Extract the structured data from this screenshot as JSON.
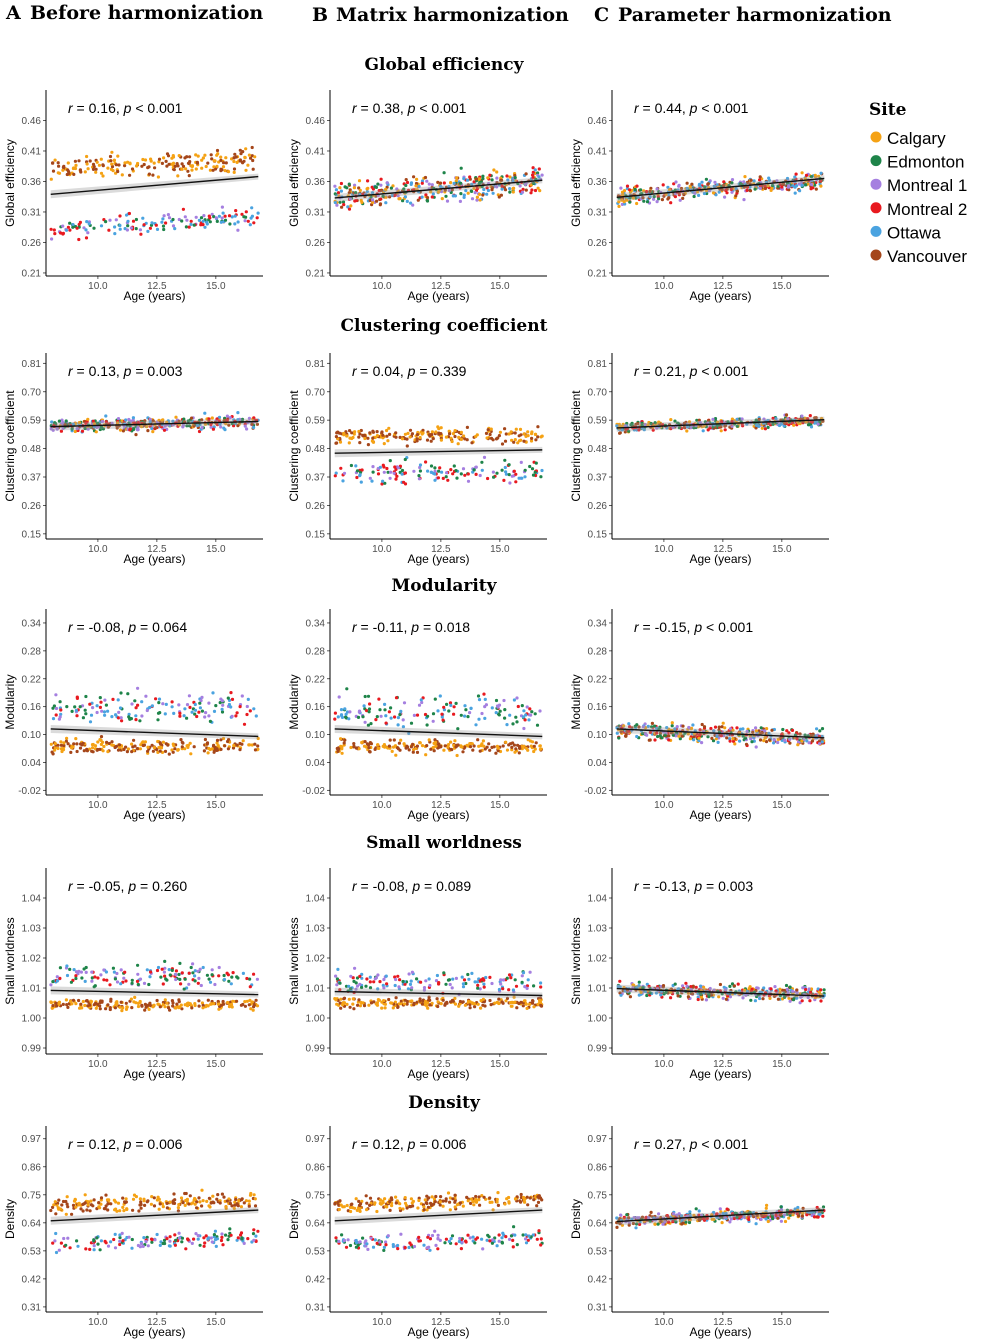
{
  "column_headers": [
    {
      "letter": "A",
      "title": "Before harmonization"
    },
    {
      "letter": "B",
      "title": "Matrix harmonization"
    },
    {
      "letter": "C",
      "title": "Parameter harmonization"
    }
  ],
  "x_axis": {
    "label": "Age (years)",
    "ticks": [
      "10.0",
      "12.5",
      "15.0"
    ],
    "tick_values": [
      10,
      12.5,
      15
    ],
    "range": [
      7.8,
      17.0
    ]
  },
  "legend": {
    "title": "Site",
    "items": [
      {
        "name": "Calgary",
        "color": "#f5a214"
      },
      {
        "name": "Edmonton",
        "color": "#1e8449"
      },
      {
        "name": "Montreal 1",
        "color": "#a57fe0"
      },
      {
        "name": "Montreal 2",
        "color": "#e8191f"
      },
      {
        "name": "Ottawa",
        "color": "#4aa3e0"
      },
      {
        "name": "Vancouver",
        "color": "#a5461a"
      }
    ]
  },
  "chart_data": [
    {
      "type": "scatter",
      "metric": "Global efficiency",
      "ylabel": "Global efficiency",
      "yticks": [
        "0.21",
        "0.26",
        "0.31",
        "0.36",
        "0.41",
        "0.46"
      ],
      "ylim": [
        0.205,
        0.51
      ],
      "panels": [
        {
          "column": "A",
          "r": "0.16",
          "p_op": "<",
          "p": "0.001",
          "fit": [
            0.339,
            0.368
          ],
          "groups": [
            {
              "sites": [
                0,
                5
              ],
              "center": 0.388,
              "spread": 0.034,
              "slope": 0.002
            },
            {
              "sites": [
                1,
                4,
                2,
                3
              ],
              "center": 0.292,
              "spread": 0.03,
              "slope": 0.002
            }
          ]
        },
        {
          "column": "B",
          "r": "0.38",
          "p_op": "<",
          "p": "0.001",
          "fit": [
            0.333,
            0.362
          ],
          "groups": [
            {
              "sites": [
                0,
                1,
                2,
                3,
                4,
                5
              ],
              "center": 0.348,
              "spread": 0.038,
              "slope": 0.003
            }
          ]
        },
        {
          "column": "C",
          "r": "0.44",
          "p_op": "<",
          "p": "0.001",
          "fit": [
            0.334,
            0.365
          ],
          "groups": [
            {
              "sites": [
                0,
                1,
                2,
                3,
                4,
                5
              ],
              "center": 0.349,
              "spread": 0.026,
              "slope": 0.003
            }
          ]
        }
      ]
    },
    {
      "type": "scatter",
      "metric": "Clustering coefficient",
      "ylabel": "Clustering coefficient",
      "yticks": [
        "0.15",
        "0.26",
        "0.37",
        "0.48",
        "0.59",
        "0.70",
        "0.81"
      ],
      "ylim": [
        0.13,
        0.85
      ],
      "panels": [
        {
          "column": "A",
          "r": "0.13",
          "p_op": "=",
          "p": "0.003",
          "fit": [
            0.565,
            0.585
          ],
          "groups": [
            {
              "sites": [
                0,
                5,
                1,
                4,
                2,
                3
              ],
              "center": 0.575,
              "spread": 0.045,
              "slope": 0.002
            }
          ]
        },
        {
          "column": "B",
          "r": "0.04",
          "p_op": "=",
          "p": "0.339",
          "fit": [
            0.462,
            0.475
          ],
          "groups": [
            {
              "sites": [
                0,
                5
              ],
              "center": 0.53,
              "spread": 0.055,
              "slope": 0.0
            },
            {
              "sites": [
                1,
                4,
                2,
                3
              ],
              "center": 0.39,
              "spread": 0.08,
              "slope": 0.0
            }
          ]
        },
        {
          "column": "C",
          "r": "0.21",
          "p_op": "<",
          "p": "0.001",
          "fit": [
            0.56,
            0.592
          ],
          "groups": [
            {
              "sites": [
                0,
                1,
                2,
                3,
                4,
                5
              ],
              "center": 0.575,
              "spread": 0.036,
              "slope": 0.003
            }
          ]
        }
      ]
    },
    {
      "type": "scatter",
      "metric": "Modularity",
      "ylabel": "Modularity",
      "yticks": [
        "-0.02",
        "0.04",
        "0.10",
        "0.16",
        "0.22",
        "0.28",
        "0.34"
      ],
      "ylim": [
        -0.03,
        0.37
      ],
      "panels": [
        {
          "column": "A",
          "r": "-0.08",
          "p_op": "=",
          "p": "0.064",
          "fit": [
            0.112,
            0.096
          ],
          "groups": [
            {
              "sites": [
                0,
                5
              ],
              "center": 0.075,
              "spread": 0.028,
              "slope": 0.0
            },
            {
              "sites": [
                1,
                4,
                2,
                3
              ],
              "center": 0.155,
              "spread": 0.06,
              "slope": 0.0
            }
          ]
        },
        {
          "column": "B",
          "r": "-0.11",
          "p_op": "=",
          "p": "0.018",
          "fit": [
            0.112,
            0.096
          ],
          "groups": [
            {
              "sites": [
                0,
                5
              ],
              "center": 0.075,
              "spread": 0.028,
              "slope": 0.0
            },
            {
              "sites": [
                1,
                4,
                2,
                3
              ],
              "center": 0.15,
              "spread": 0.06,
              "slope": 0.0
            }
          ]
        },
        {
          "column": "C",
          "r": "-0.15",
          "p_op": "<",
          "p": "0.001",
          "fit": [
            0.112,
            0.093
          ],
          "groups": [
            {
              "sites": [
                0,
                1,
                2,
                3,
                4,
                5
              ],
              "center": 0.1,
              "spread": 0.034,
              "slope": -0.002
            }
          ]
        }
      ]
    },
    {
      "type": "scatter",
      "metric": "Small worldness",
      "ylabel": "Small worldness",
      "yticks": [
        "0.99",
        "1.00",
        "1.01",
        "1.02",
        "1.03",
        "1.04"
      ],
      "ylim": [
        0.988,
        1.05
      ],
      "panels": [
        {
          "column": "A",
          "r": "-0.05",
          "p_op": "=",
          "p": "0.260",
          "fit": [
            1.0092,
            1.0078
          ],
          "groups": [
            {
              "sites": [
                0,
                5
              ],
              "center": 1.0045,
              "spread": 0.003,
              "slope": 0.0
            },
            {
              "sites": [
                1,
                4,
                2,
                3
              ],
              "center": 1.014,
              "spread": 0.007,
              "slope": 0.0
            }
          ]
        },
        {
          "column": "B",
          "r": "-0.08",
          "p_op": "=",
          "p": "0.089",
          "fit": [
            1.0088,
            1.0075
          ],
          "groups": [
            {
              "sites": [
                0,
                5
              ],
              "center": 1.005,
              "spread": 0.003,
              "slope": 0.0
            },
            {
              "sites": [
                1,
                4,
                2,
                3
              ],
              "center": 1.012,
              "spread": 0.006,
              "slope": 0.0
            }
          ]
        },
        {
          "column": "C",
          "r": "-0.13",
          "p_op": "=",
          "p": "0.003",
          "fit": [
            1.0098,
            1.0073
          ],
          "groups": [
            {
              "sites": [
                0,
                1,
                2,
                3,
                4,
                5
              ],
              "center": 1.0088,
              "spread": 0.0045,
              "slope": -0.0002
            }
          ]
        }
      ]
    },
    {
      "type": "scatter",
      "metric": "Density",
      "ylabel": "Density",
      "yticks": [
        "0.31",
        "0.42",
        "0.53",
        "0.64",
        "0.75",
        "0.86",
        "0.97"
      ],
      "ylim": [
        0.29,
        1.02
      ],
      "panels": [
        {
          "column": "A",
          "r": "0.12",
          "p_op": "=",
          "p": "0.006",
          "fit": [
            0.648,
            0.69
          ],
          "groups": [
            {
              "sites": [
                0,
                5
              ],
              "center": 0.72,
              "spread": 0.055,
              "slope": 0.003
            },
            {
              "sites": [
                1,
                4,
                2,
                3
              ],
              "center": 0.57,
              "spread": 0.06,
              "slope": 0.003
            }
          ]
        },
        {
          "column": "B",
          "r": "0.12",
          "p_op": "=",
          "p": "0.006",
          "fit": [
            0.648,
            0.69
          ],
          "groups": [
            {
              "sites": [
                0,
                5
              ],
              "center": 0.72,
              "spread": 0.055,
              "slope": 0.003
            },
            {
              "sites": [
                1,
                4,
                2,
                3
              ],
              "center": 0.57,
              "spread": 0.06,
              "slope": 0.003
            }
          ]
        },
        {
          "column": "C",
          "r": "0.27",
          "p_op": "<",
          "p": "0.001",
          "fit": [
            0.645,
            0.69
          ],
          "groups": [
            {
              "sites": [
                0,
                1,
                2,
                3,
                4,
                5
              ],
              "center": 0.665,
              "spread": 0.045,
              "slope": 0.004
            }
          ]
        }
      ]
    }
  ]
}
